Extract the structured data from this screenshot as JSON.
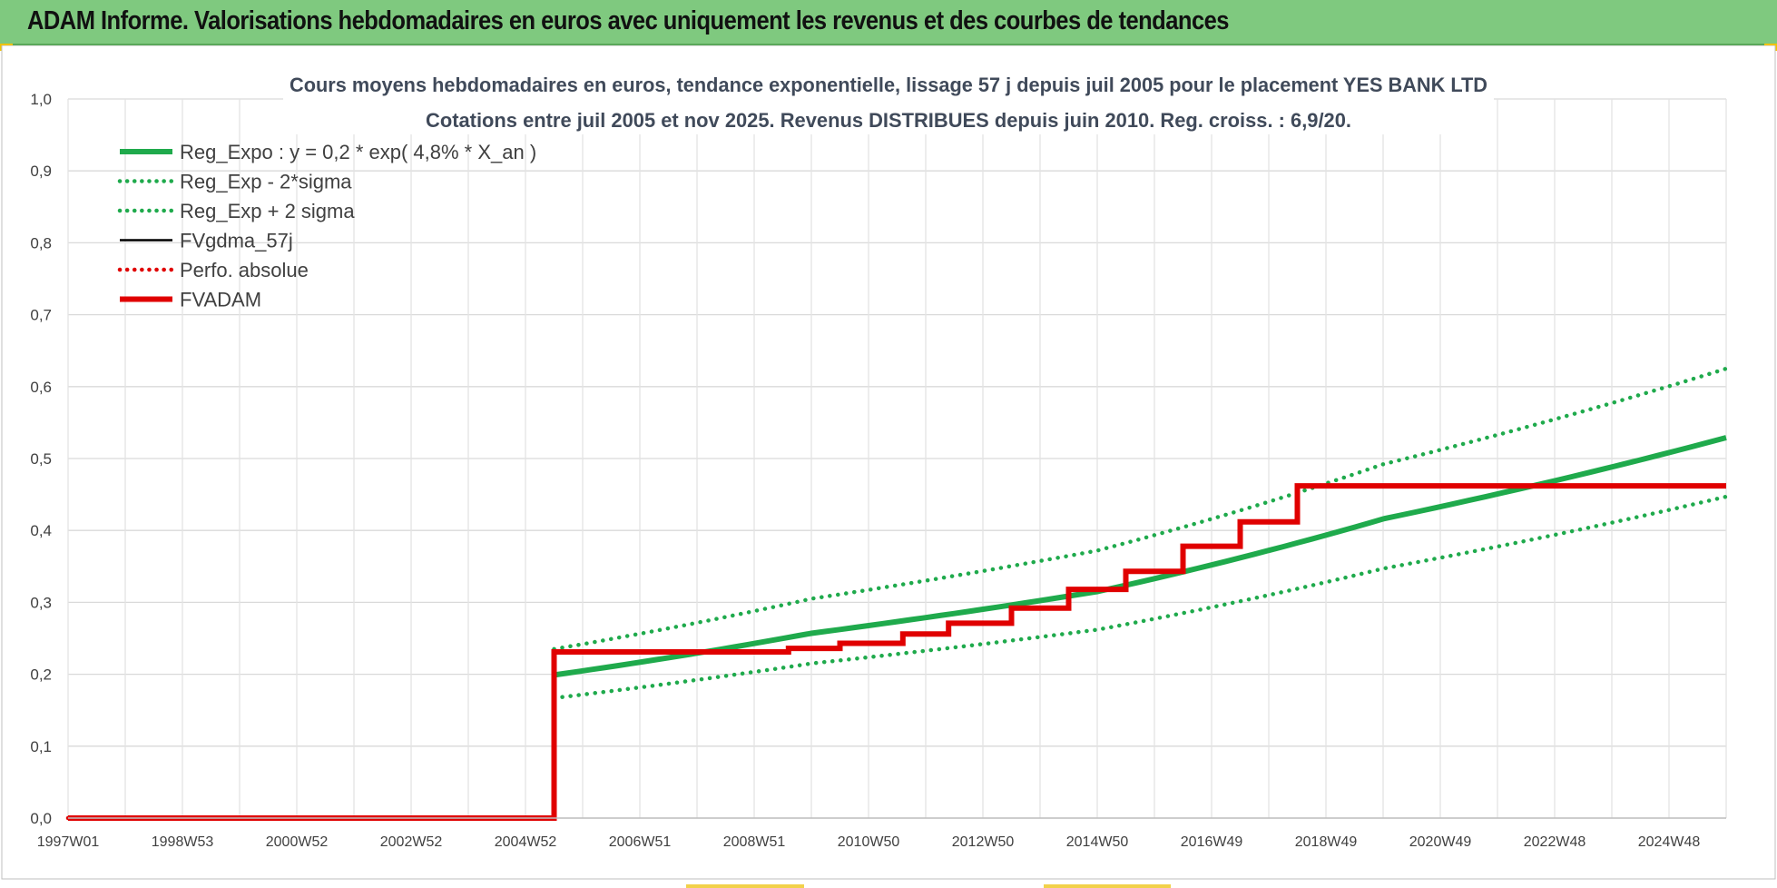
{
  "header": {
    "title": "ADAM Informe. Valorisations hebdomadaires en euros avec uniquement les revenus et des courbes de tendances"
  },
  "colors": {
    "header_bg": "#7fc97f",
    "accent_yellow": "#f2c200",
    "reg_green": "#1faa4c",
    "fvgdma_black": "#000000",
    "fvadam_red": "#e00000",
    "grid": "#d9d9d9"
  },
  "chart_data": {
    "type": "line",
    "title_line1": "Cours moyens hebdomadaires en euros, tendance exponentielle, lissage 57 j depuis juil 2005 pour le placement YES BANK LTD",
    "title_line2": "Cotations entre juil 2005 et nov 2025. Revenus DISTRIBUES depuis juin 2010. Reg. croiss. : 6,9/20.",
    "xlabel": "",
    "ylabel": "",
    "x_range": [
      1997.0,
      2026.0
    ],
    "ylim": [
      0,
      1.0
    ],
    "y_ticks": [
      "0,0",
      "0,1",
      "0,2",
      "0,3",
      "0,4",
      "0,5",
      "0,6",
      "0,7",
      "0,8",
      "0,9",
      "1,0"
    ],
    "x_tick_labels": [
      "1997W01",
      "1998W53",
      "2000W52",
      "2002W52",
      "2004W52",
      "2006W51",
      "2008W51",
      "2010W50",
      "2012W50",
      "2014W50",
      "2016W49",
      "2018W49",
      "2020W49",
      "2022W48",
      "2024W48"
    ],
    "grid": true,
    "legend_position": "top-left",
    "series": [
      {
        "name": "Reg_Expo : y = 0,2 * exp( 4,8% *  X_an )",
        "style": "solid-thick",
        "color": "#1faa4c",
        "x": [
          2005.5,
          2010,
          2015,
          2020,
          2026.0
        ],
        "y": [
          0.199,
          0.257,
          0.315,
          0.416,
          0.529
        ]
      },
      {
        "name": "Reg_Exp - 2*sigma",
        "style": "dotted",
        "color": "#1faa4c",
        "x": [
          2005.5,
          2010,
          2015,
          2020,
          2026.0
        ],
        "y": [
          0.167,
          0.215,
          0.262,
          0.347,
          0.447
        ]
      },
      {
        "name": "Reg_Exp + 2 sigma",
        "style": "dotted",
        "color": "#1faa4c",
        "x": [
          2005.5,
          2010,
          2015,
          2020,
          2026.0
        ],
        "y": [
          0.235,
          0.305,
          0.372,
          0.492,
          0.625
        ]
      },
      {
        "name": "FVgdma_57j",
        "style": "solid-thin",
        "color": "#000000",
        "x": [
          1997.0,
          2005.5,
          2005.5,
          2009.6,
          2009.6,
          2010.5,
          2010.5,
          2011.6,
          2011.6,
          2012.4,
          2012.4,
          2013.5,
          2013.5,
          2014.5,
          2014.5,
          2015.5,
          2015.5,
          2016.5,
          2016.5,
          2017.5,
          2017.5,
          2018.5,
          2018.5,
          2019.5,
          2019.5,
          2026.0
        ],
        "y": [
          0.0,
          0.0,
          0.231,
          0.231,
          0.236,
          0.236,
          0.243,
          0.243,
          0.256,
          0.256,
          0.271,
          0.271,
          0.292,
          0.292,
          0.318,
          0.318,
          0.343,
          0.343,
          0.378,
          0.378,
          0.412,
          0.412,
          0.462,
          0.462,
          0.462,
          0.462
        ]
      },
      {
        "name": "Perfo. absolue",
        "style": "dotted",
        "color": "#e00000",
        "x": [
          1997.0,
          2005.5,
          2005.5,
          2009.6,
          2009.6,
          2010.5,
          2010.5,
          2011.6,
          2011.6,
          2012.4,
          2012.4,
          2013.5,
          2013.5,
          2014.5,
          2014.5,
          2015.5,
          2015.5,
          2016.5,
          2016.5,
          2017.5,
          2017.5,
          2018.5,
          2018.5,
          2026.0
        ],
        "y": [
          0.0,
          0.0,
          0.231,
          0.231,
          0.236,
          0.236,
          0.243,
          0.243,
          0.256,
          0.256,
          0.271,
          0.271,
          0.292,
          0.292,
          0.318,
          0.318,
          0.343,
          0.343,
          0.378,
          0.378,
          0.412,
          0.412,
          0.462,
          0.462
        ]
      },
      {
        "name": "FVADAM",
        "style": "solid-thick",
        "color": "#e00000",
        "x": [
          1997.0,
          2005.5,
          2005.5,
          2009.6,
          2009.6,
          2010.5,
          2010.5,
          2011.6,
          2011.6,
          2012.4,
          2012.4,
          2013.5,
          2013.5,
          2014.5,
          2014.5,
          2015.5,
          2015.5,
          2016.5,
          2016.5,
          2017.5,
          2017.5,
          2018.5,
          2018.5,
          2026.0
        ],
        "y": [
          0.0,
          0.0,
          0.231,
          0.231,
          0.236,
          0.236,
          0.243,
          0.243,
          0.256,
          0.256,
          0.271,
          0.271,
          0.292,
          0.292,
          0.318,
          0.318,
          0.343,
          0.343,
          0.378,
          0.378,
          0.412,
          0.412,
          0.462,
          0.462
        ]
      }
    ]
  }
}
